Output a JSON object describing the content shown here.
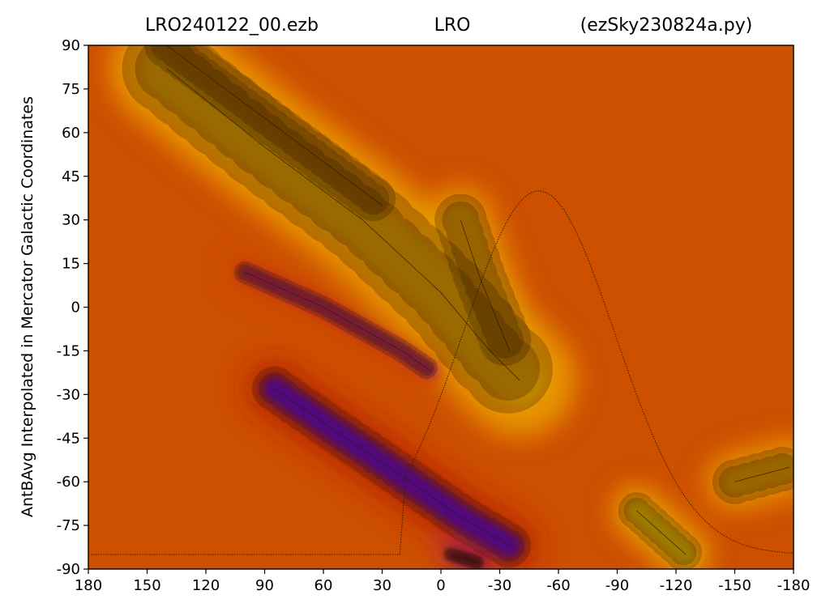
{
  "chart_data": {
    "type": "heatmap",
    "title_left": "LRO240122_00.ezb",
    "title_center": "LRO",
    "title_right": "(ezSky230824a.py)",
    "xlabel": "",
    "ylabel": "AntBAvg Interpolated in Mercator Galactic Coordinates",
    "xlim": [
      180,
      -180
    ],
    "ylim": [
      -90,
      90
    ],
    "x_ticks": [
      180,
      150,
      120,
      90,
      60,
      30,
      0,
      -30,
      -60,
      -90,
      -120,
      -150,
      -180
    ],
    "y_ticks": [
      90,
      75,
      60,
      45,
      30,
      15,
      0,
      -15,
      -30,
      -45,
      -60,
      -75,
      -90
    ],
    "colormap": "gnuplot",
    "grid": false,
    "legend": "none",
    "features": [
      {
        "name": "bright-band-upper",
        "level": 0.88,
        "path": [
          [
            140,
            82
          ],
          [
            90,
            55
          ],
          [
            40,
            30
          ],
          [
            0,
            5
          ],
          [
            -25,
            -15
          ],
          [
            -40,
            -25
          ]
        ],
        "width": 24
      },
      {
        "name": "bright-ridge-top",
        "level": 0.84,
        "path": [
          [
            140,
            90
          ],
          [
            100,
            70
          ],
          [
            60,
            50
          ],
          [
            30,
            35
          ]
        ],
        "width": 12
      },
      {
        "name": "bright-lobe-right",
        "level": 0.86,
        "path": [
          [
            -10,
            30
          ],
          [
            -20,
            10
          ],
          [
            -35,
            -15
          ]
        ],
        "width": 14
      },
      {
        "name": "bright-spot-lower-right",
        "level": 0.93,
        "path": [
          [
            -100,
            -70
          ],
          [
            -125,
            -85
          ]
        ],
        "width": 10
      },
      {
        "name": "bright-corner-lower-right",
        "level": 0.87,
        "path": [
          [
            -150,
            -60
          ],
          [
            -178,
            -55
          ]
        ],
        "width": 12
      },
      {
        "name": "violet-streak-mid",
        "level": 0.42,
        "path": [
          [
            100,
            12
          ],
          [
            60,
            0
          ],
          [
            20,
            -15
          ],
          [
            5,
            -22
          ]
        ],
        "width": 6
      },
      {
        "name": "blue-band-lower",
        "level": 0.18,
        "path": [
          [
            85,
            -28
          ],
          [
            55,
            -42
          ],
          [
            20,
            -58
          ],
          [
            -10,
            -72
          ],
          [
            -35,
            -82
          ]
        ],
        "width": 12
      },
      {
        "name": "dark-core",
        "level": 0.02,
        "path": [
          [
            -5,
            -85
          ],
          [
            -20,
            -88
          ]
        ],
        "width": 4
      }
    ]
  }
}
